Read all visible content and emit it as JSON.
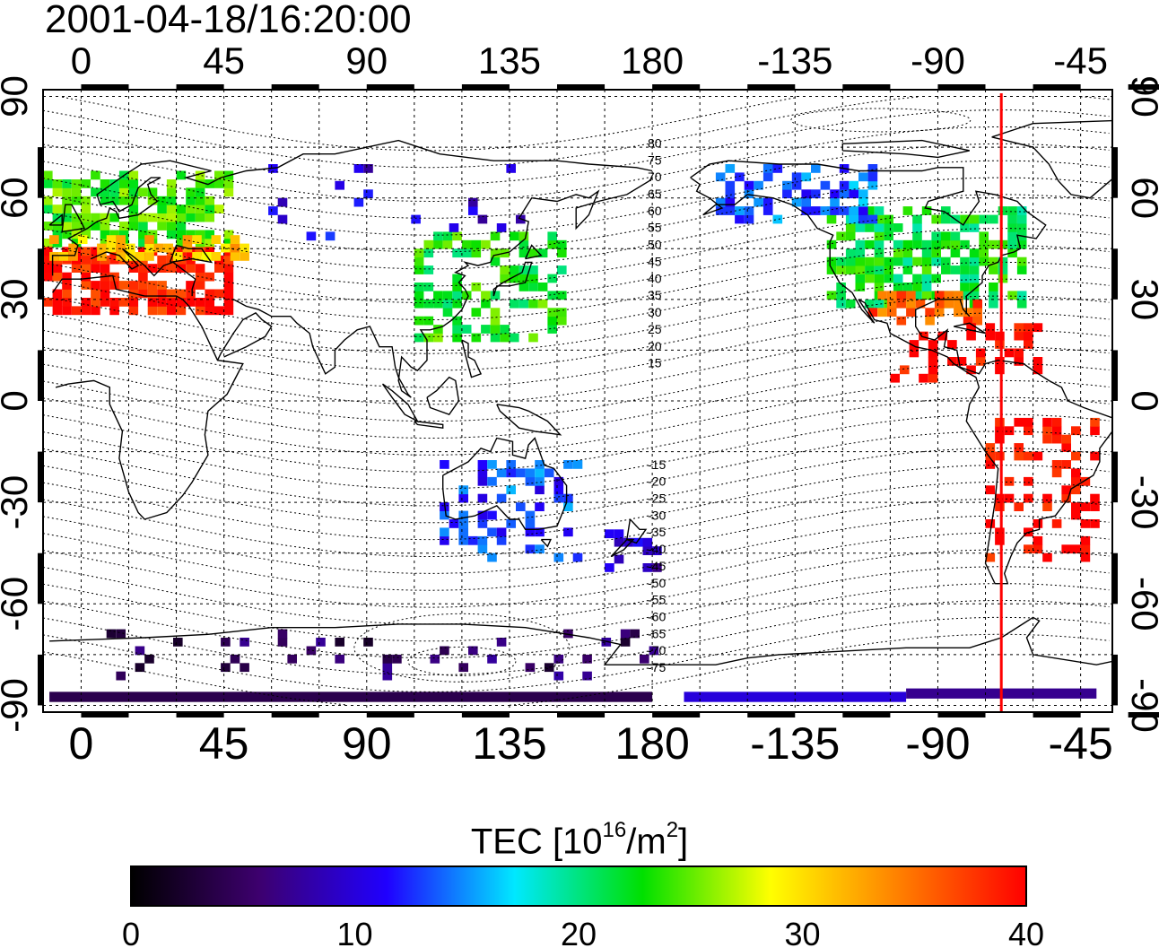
{
  "title": "2001-04-18/16:20:00",
  "colorbar": {
    "title_prefix": "TEC  [10",
    "title_exp1": "16",
    "title_mid": "/m",
    "title_exp2": "2",
    "title_suffix": "]",
    "min": 0,
    "max": 40,
    "ticks": [
      "0",
      "10",
      "20",
      "30",
      "40"
    ],
    "colormap": [
      "#000000",
      "#3d006e",
      "#2000ff",
      "#00e8ff",
      "#00e000",
      "#ffff00",
      "#ff8000",
      "#ff0000"
    ]
  },
  "axes": {
    "lon_ticks": [
      "0",
      "45",
      "90",
      "135",
      "180",
      "-135",
      "-90",
      "-45"
    ],
    "lat_ticks": [
      "90",
      "60",
      "30",
      "0",
      "-30",
      "-60",
      "-90"
    ],
    "lon_range": [
      -12,
      325
    ],
    "lat_range": [
      -92,
      92
    ]
  },
  "magnetic_latitude_labels": [
    "80",
    "75",
    "70",
    "65",
    "60",
    "55",
    "50",
    "45",
    "40",
    "35",
    "30",
    "25",
    "20",
    "15",
    "-15",
    "-20",
    "-25",
    "-30",
    "-35",
    "-40",
    "-45",
    "-50",
    "-55",
    "-60",
    "-65",
    "-70",
    "-75"
  ],
  "terminator_longitude": -70,
  "terminator_color": "#ff0000",
  "regions": [
    {
      "name": "europe-high",
      "tec": 24,
      "lon": [
        -12,
        45
      ],
      "lat": [
        48,
        68
      ],
      "density": 0.7
    },
    {
      "name": "europe-mid",
      "tec": 39,
      "lon": [
        -12,
        45
      ],
      "lat": [
        28,
        46
      ],
      "density": 0.75
    },
    {
      "name": "europe-transition",
      "tec": 31,
      "lon": [
        -10,
        50
      ],
      "lat": [
        44,
        50
      ],
      "density": 0.6
    },
    {
      "name": "east-asia",
      "tec": 23,
      "lon": [
        105,
        150
      ],
      "lat": [
        20,
        52
      ],
      "density": 0.45
    },
    {
      "name": "north-america",
      "tec": 22,
      "lon": [
        -125,
        -65
      ],
      "lat": [
        30,
        58
      ],
      "density": 0.65
    },
    {
      "name": "north-america-south",
      "tec": 36,
      "lon": [
        -115,
        -78
      ],
      "lat": [
        25,
        33
      ],
      "density": 0.55
    },
    {
      "name": "canada",
      "tec": 14,
      "lon": [
        -160,
        -110
      ],
      "lat": [
        55,
        70
      ],
      "density": 0.55
    },
    {
      "name": "central-america",
      "tec": 40,
      "lon": [
        -105,
        -60
      ],
      "lat": [
        8,
        25
      ],
      "density": 0.35
    },
    {
      "name": "south-america",
      "tec": 40,
      "lon": [
        -75,
        -40
      ],
      "lat": [
        -45,
        -5
      ],
      "density": 0.35
    },
    {
      "name": "australia",
      "tec": 13,
      "lon": [
        113,
        155
      ],
      "lat": [
        -45,
        -15
      ],
      "density": 0.3
    },
    {
      "name": "new-zealand",
      "tec": 9,
      "lon": [
        165,
        180
      ],
      "lat": [
        -48,
        -36
      ],
      "density": 0.6
    },
    {
      "name": "antarctic",
      "tec": 5,
      "lon": [
        -10,
        180
      ],
      "lat": [
        -80,
        -66
      ],
      "density": 0.1
    },
    {
      "name": "russia",
      "tec": 10,
      "lon": [
        50,
        140
      ],
      "lat": [
        50,
        72
      ],
      "density": 0.05
    }
  ],
  "bands": [
    {
      "name": "antarctic-band-1",
      "tec": 4,
      "lon": [
        -10,
        180
      ],
      "lat": [
        -89,
        -86
      ]
    },
    {
      "name": "antarctic-band-2",
      "tec": 10,
      "lon": [
        -170,
        -100
      ],
      "lat": [
        -89,
        -86
      ]
    },
    {
      "name": "antarctic-band-3",
      "tec": 7,
      "lon": [
        -100,
        -40
      ],
      "lat": [
        -88,
        -85
      ]
    }
  ]
}
